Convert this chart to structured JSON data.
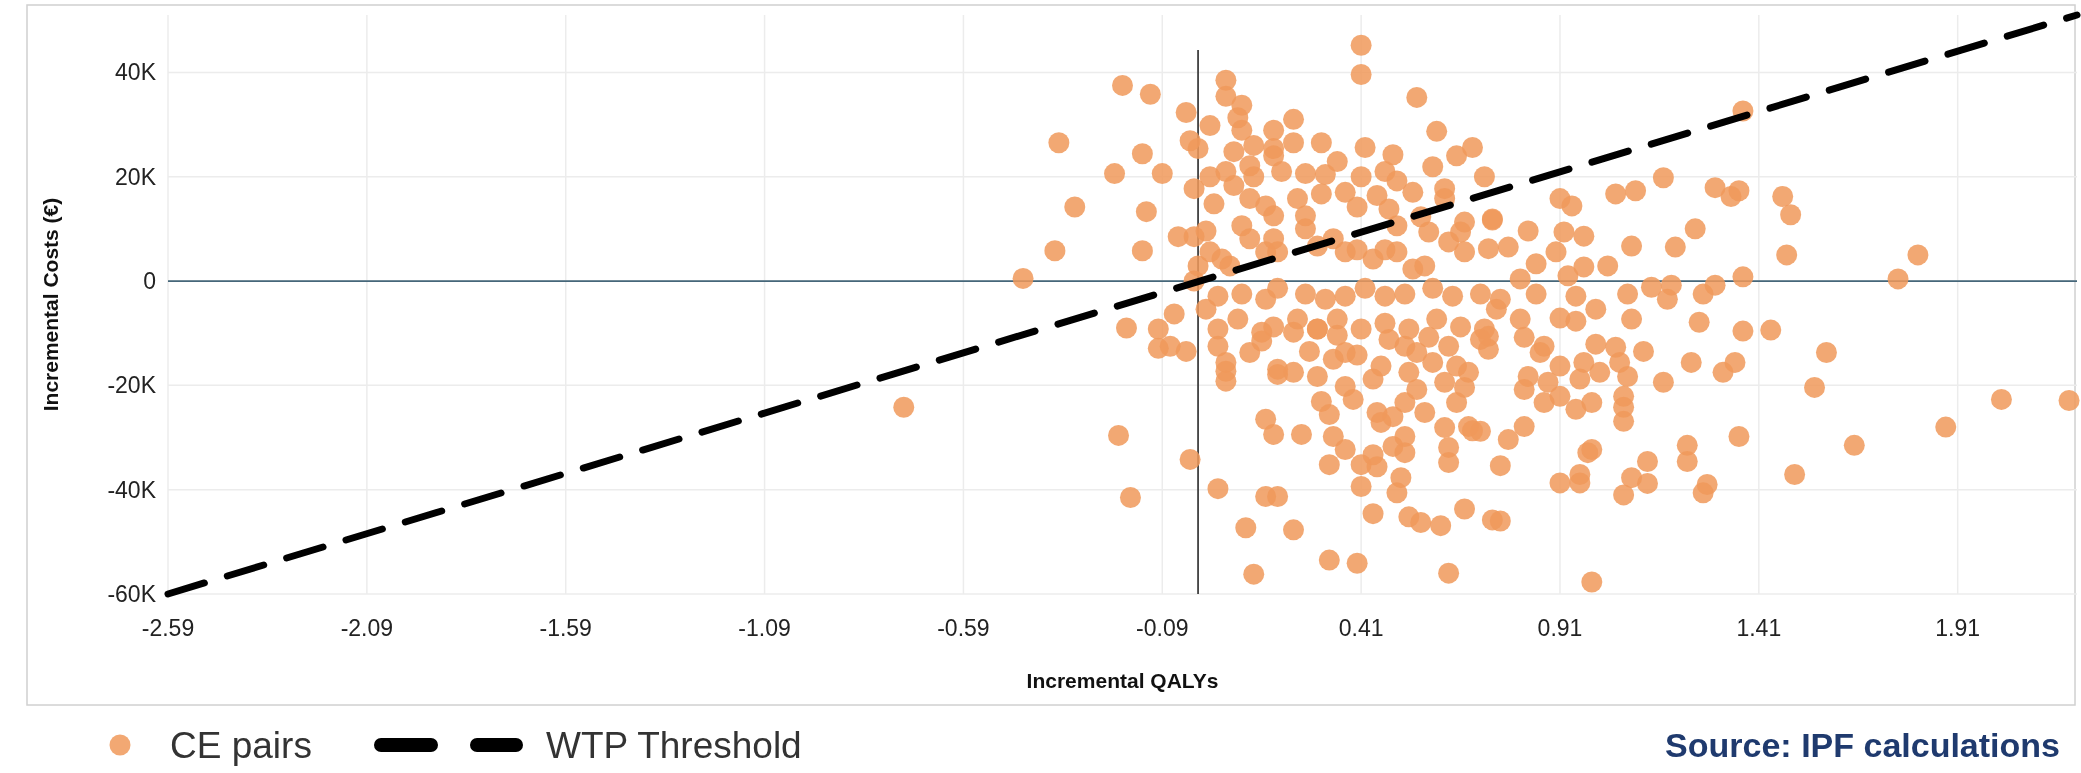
{
  "chart_data": {
    "type": "scatter",
    "xlabel": "Incremental QALYs",
    "ylabel": "Incremental Costs (€)",
    "xlim": [
      -2.59,
      2.21
    ],
    "ylim": [
      -60000,
      51000
    ],
    "xticks": [
      -2.59,
      -2.09,
      -1.59,
      -1.09,
      -0.59,
      -0.09,
      0.41,
      0.91,
      1.41,
      1.91
    ],
    "yticks": [
      {
        "value": -60000,
        "label": "-60K"
      },
      {
        "value": -40000,
        "label": "-40K"
      },
      {
        "value": -20000,
        "label": "-20K"
      },
      0,
      {
        "value": 20000,
        "label": "20K"
      },
      {
        "value": 40000,
        "label": "40K"
      }
    ],
    "grid": true,
    "legend": "bottom",
    "marker": "circle",
    "ref_lines": [
      {
        "axis": "x",
        "value": 0,
        "color": "#404040"
      },
      {
        "axis": "y",
        "value": 0,
        "color": "#46677a"
      }
    ],
    "annotations": [
      "Source: IPF calculations"
    ],
    "series": [
      {
        "name": "CE pairs",
        "color": "#f0995a",
        "x": [
          0.41,
          0.41,
          0.55,
          -0.19,
          -0.12,
          -0.03,
          0.07,
          0.07,
          0.11,
          0.1,
          0.11,
          0.19,
          0.24,
          0.03,
          -0.14,
          -0.21,
          -0.09,
          -0.02,
          0.0,
          0.09,
          0.14,
          0.19,
          0.24,
          0.31,
          0.35,
          0.42,
          0.49,
          0.6,
          0.65,
          0.69,
          0.72,
          0.59,
          -0.01,
          -0.13,
          -0.14,
          -0.05,
          -0.01,
          0.02,
          0.04,
          0.03,
          0.07,
          0.09,
          0.13,
          0.14,
          0.21,
          0.19,
          0.13,
          0.17,
          0.19,
          0.25,
          0.27,
          0.27,
          0.32,
          0.31,
          0.37,
          0.41,
          0.47,
          0.5,
          0.54,
          0.45,
          0.4,
          0.48,
          0.5,
          0.56,
          0.58,
          0.62,
          0.62,
          0.67,
          0.66,
          0.63,
          0.67,
          0.74,
          0.73,
          0.11,
          0.13,
          0.17,
          0.19,
          0.2,
          0.27,
          0.3,
          0.34,
          0.37,
          0.4,
          0.44,
          0.47,
          0.5,
          0.54,
          0.57,
          0.06,
          0.03,
          0.08,
          0.0,
          -0.01,
          0.05,
          0.11,
          0.17,
          0.2,
          0.27,
          0.32,
          0.37,
          0.42,
          0.47,
          0.52,
          0.59,
          0.64,
          0.71,
          0.02,
          -0.06,
          -0.1,
          -0.18,
          0.05,
          0.1,
          0.19,
          0.25,
          0.3,
          0.35,
          0.41,
          0.47,
          0.53,
          0.6,
          0.66,
          0.72,
          1.37,
          1.17,
          1.05,
          1.1,
          1.3,
          1.36,
          1.34,
          1.47,
          1.49,
          1.48,
          0.91,
          0.94,
          0.74,
          0.83,
          0.92,
          0.97,
          1.09,
          1.2,
          1.25,
          0.78,
          0.85,
          0.9,
          0.97,
          1.03,
          0.81,
          0.93,
          1.37,
          1.08,
          1.14,
          1.19,
          1.18,
          1.27,
          1.3,
          0.75,
          0.76,
          0.85,
          0.95,
          1.0,
          0.81,
          0.91,
          0.95,
          1.09,
          1.26,
          1.37,
          1.44,
          1.58,
          1.55,
          1.65,
          1.5,
          1.36,
          1.23,
          1.23,
          1.28,
          1.27,
          1.13,
          1.13,
          1.09,
          1.07,
          0.98,
          0.99,
          0.96,
          0.96,
          0.91,
          0.99,
          0.74,
          0.76,
          0.76,
          0.78,
          0.82,
          1.32,
          1.35,
          1.24,
          1.17,
          1.12,
          1.07,
          1.07,
          1.07,
          1.08,
          1.06,
          1.05,
          1.0,
          1.01,
          0.97,
          0.96,
          0.99,
          0.95,
          0.91,
          0.91,
          0.87,
          0.88,
          0.83,
          0.82,
          0.87,
          0.86,
          0.82,
          0.73,
          0.73,
          0.71,
          -0.1,
          -0.07,
          -0.03,
          -0.2,
          -0.02,
          -0.17,
          0.05,
          0.07,
          0.07,
          0.07,
          0.13,
          0.16,
          0.16,
          0.24,
          0.2,
          0.24,
          0.2,
          0.3,
          0.28,
          0.34,
          0.37,
          0.4,
          0.37,
          0.39,
          0.31,
          0.33,
          0.44,
          0.46,
          0.52,
          0.55,
          0.53,
          0.55,
          0.52,
          0.57,
          0.45,
          0.46,
          0.49,
          0.17,
          0.19,
          0.26,
          0.34,
          0.37,
          0.33,
          0.41,
          0.44,
          0.41,
          0.45,
          0.49,
          0.52,
          0.52,
          0.51,
          0.5,
          0.62,
          0.63,
          0.63,
          0.68,
          0.69,
          0.65,
          0.67,
          0.62,
          0.59,
          0.65,
          0.68,
          0.63,
          0.71,
          0.05,
          0.17,
          0.2,
          0.12,
          0.24,
          0.14,
          0.33,
          0.4,
          0.44,
          0.53,
          0.56,
          0.61,
          0.67,
          0.63,
          0.3,
          0.35,
          0.48,
          0.58,
          1.76,
          1.81,
          1.88,
          2.02,
          2.19,
          -0.35,
          -0.31,
          -0.36,
          -0.44,
          -0.74
        ],
        "values": [
          45200,
          39600,
          35200,
          37500,
          35800,
          32300,
          38500,
          35400,
          33700,
          31300,
          28900,
          28900,
          31000,
          29800,
          24400,
          20600,
          20600,
          26900,
          25400,
          24800,
          26000,
          25400,
          26500,
          26500,
          22900,
          25600,
          24200,
          28700,
          24000,
          25600,
          20000,
          21900,
          17700,
          13300,
          5800,
          8500,
          8500,
          9600,
          14800,
          20000,
          21000,
          18300,
          22100,
          20000,
          21000,
          24000,
          15800,
          14400,
          12500,
          15800,
          12500,
          20600,
          20400,
          16700,
          17000,
          20000,
          21000,
          19200,
          17000,
          16400,
          14200,
          13800,
          10600,
          12300,
          9400,
          17700,
          15800,
          11300,
          9400,
          7500,
          5600,
          11900,
          6200,
          10600,
          8100,
          5600,
          8100,
          5600,
          10000,
          6700,
          8100,
          5600,
          6000,
          4200,
          6000,
          5600,
          2300,
          2900,
          4200,
          5600,
          2900,
          2900,
          0,
          -2900,
          -2500,
          -3500,
          -1400,
          -2500,
          -3500,
          -2900,
          -1400,
          -2900,
          -2500,
          -1400,
          -2900,
          -2500,
          -5400,
          -6300,
          -9200,
          -9000,
          -9200,
          -7300,
          -8800,
          -7300,
          -9200,
          -7300,
          -9200,
          -8100,
          -9200,
          -7300,
          -8800,
          -9200,
          32600,
          19800,
          16700,
          17300,
          17900,
          17300,
          16200,
          16200,
          12700,
          5000,
          15800,
          14400,
          11700,
          9600,
          9400,
          8600,
          6700,
          6500,
          10000,
          6500,
          3300,
          5600,
          2700,
          2900,
          400,
          1000,
          800,
          -2500,
          -1200,
          -800,
          -3500,
          -2500,
          -800,
          -5400,
          -3500,
          -2500,
          -2900,
          -5400,
          -7300,
          -7100,
          -7700,
          -7300,
          -7900,
          -9600,
          -9400,
          -13700,
          -20400,
          -31500,
          -37100,
          -29800,
          -31500,
          -34600,
          -39000,
          -40600,
          -34600,
          -38800,
          -37700,
          -41000,
          -32900,
          -32300,
          -37100,
          -38700,
          -38700,
          -57700,
          -45800,
          -46000,
          -35400,
          -30400,
          -27900,
          -17500,
          -15600,
          -15600,
          -19400,
          -13500,
          -26900,
          -24200,
          -22100,
          -18300,
          -15600,
          -12700,
          -12100,
          -17500,
          -15600,
          -18800,
          -23300,
          -24600,
          -16300,
          -22100,
          -23300,
          -19400,
          -18300,
          -20800,
          -12500,
          -13700,
          -10800,
          -10600,
          -13100,
          -28800,
          -12900,
          -12500,
          -13500,
          -29600,
          -34200,
          -41500,
          -12500,
          -15600,
          -17300,
          -19200,
          -13700,
          -11500,
          -9800,
          -9800,
          -17900,
          -17500,
          -16900,
          -18300,
          -13500,
          -15000,
          -13700,
          -14200,
          -20200,
          -22700,
          -23100,
          -25600,
          -18800,
          -16300,
          -12500,
          -13700,
          -17500,
          -20800,
          -23300,
          -25200,
          -25200,
          -27100,
          -26000,
          -26500,
          -29400,
          -29400,
          -29800,
          -32300,
          -35200,
          -35200,
          -33300,
          -39400,
          -35600,
          -31700,
          -32900,
          -29800,
          -37700,
          -40600,
          -28100,
          -31900,
          -34800,
          -27900,
          -28700,
          -23300,
          -20400,
          -19400,
          -15600,
          -16300,
          -17500,
          -12500,
          -11200,
          -39800,
          -41300,
          -41300,
          -47300,
          -47700,
          -56200,
          -53500,
          -54100,
          -44600,
          -45200,
          -46300,
          -46900,
          -43700,
          -56000,
          -9200,
          -10400,
          -11200,
          -10800,
          400,
          5000,
          -28000,
          -22700,
          -22900,
          26500,
          14200,
          5800,
          500,
          -24200
        ]
      },
      {
        "name": "WTP Threshold",
        "type": "line",
        "color": "#000000",
        "line_style": "dashed",
        "marker": "none",
        "x": [
          -2.59,
          2.21
        ],
        "values": [
          -60000,
          51000
        ]
      }
    ]
  }
}
